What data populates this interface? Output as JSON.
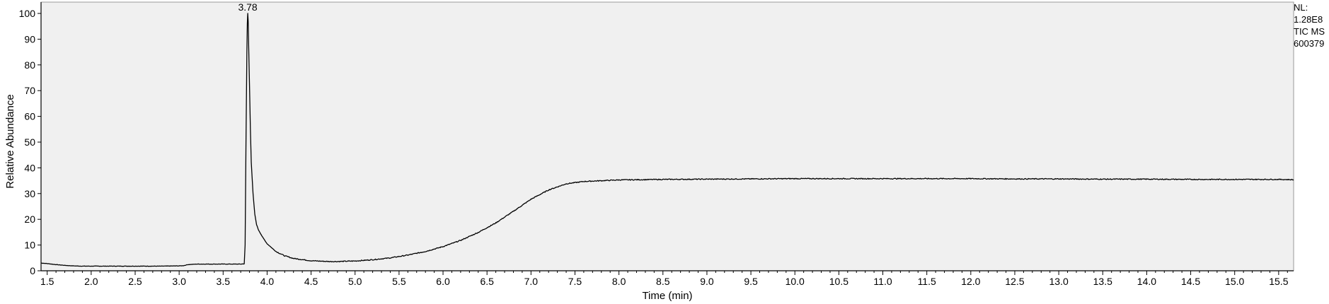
{
  "chart_data": {
    "type": "line",
    "title": "",
    "xlabel": "Time (min)",
    "ylabel": "Relative Abundance",
    "xlim": [
      1.43,
      15.67
    ],
    "ylim": [
      0,
      100
    ],
    "x_ticks": [
      1.5,
      2.0,
      2.5,
      3.0,
      3.5,
      4.0,
      4.5,
      5.0,
      5.5,
      6.0,
      6.5,
      7.0,
      7.5,
      8.0,
      8.5,
      9.0,
      9.5,
      10.0,
      10.5,
      11.0,
      11.5,
      12.0,
      12.5,
      13.0,
      13.5,
      14.0,
      14.5,
      15.0,
      15.5
    ],
    "x_tick_labels": [
      "1.5",
      "2.0",
      "2.5",
      "3.0",
      "3.5",
      "4.0",
      "4.5",
      "5.0",
      "5.5",
      "6.0",
      "6.5",
      "7.0",
      "7.5",
      "8.0",
      "8.5",
      "9.0",
      "9.5",
      "10.0",
      "10.5",
      "11.0",
      "11.5",
      "12.0",
      "12.5",
      "13.0",
      "13.5",
      "14.0",
      "14.5",
      "15.0",
      "15.5"
    ],
    "y_ticks": [
      0,
      10,
      20,
      30,
      40,
      50,
      60,
      70,
      80,
      90,
      100
    ],
    "y_tick_labels": [
      "0",
      "10",
      "20",
      "30",
      "40",
      "50",
      "60",
      "70",
      "80",
      "90",
      "100"
    ],
    "grid": false,
    "background_color": "#f0f0f0",
    "line_color": "#000000",
    "series": [
      {
        "x": [
          1.43,
          1.5,
          1.6,
          1.7,
          1.8,
          1.9,
          2.0,
          2.2,
          2.4,
          2.6,
          2.8,
          3.0,
          3.05,
          3.1,
          3.2,
          3.3,
          3.4,
          3.5,
          3.6,
          3.7,
          3.74,
          3.75,
          3.76,
          3.77,
          3.775,
          3.78,
          3.785,
          3.79,
          3.8,
          3.81,
          3.82,
          3.84,
          3.86,
          3.88,
          3.9,
          3.95,
          4.0,
          4.1,
          4.2,
          4.3,
          4.5,
          4.7,
          4.8,
          5.0,
          5.2,
          5.4,
          5.6,
          5.8,
          6.0,
          6.2,
          6.4,
          6.6,
          6.8,
          7.0,
          7.2,
          7.4,
          7.6,
          7.8,
          8.0,
          8.5,
          9.0,
          9.5,
          10.0,
          10.5,
          11.0,
          11.5,
          12.0,
          12.5,
          13.0,
          13.5,
          14.0,
          14.5,
          15.0,
          15.5,
          15.67
        ],
        "y": [
          3.0,
          2.8,
          2.4,
          2.1,
          1.9,
          1.8,
          1.8,
          1.8,
          1.8,
          1.8,
          1.8,
          1.9,
          2.0,
          2.4,
          2.6,
          2.6,
          2.6,
          2.6,
          2.6,
          2.6,
          2.7,
          10,
          50,
          85,
          96,
          100,
          97,
          88,
          72,
          55,
          42,
          30,
          22,
          18,
          16,
          13,
          10.5,
          7.5,
          5.8,
          4.8,
          3.9,
          3.6,
          3.6,
          3.8,
          4.3,
          5.0,
          6.1,
          7.5,
          9.4,
          11.8,
          14.9,
          18.6,
          23.1,
          27.8,
          31.4,
          33.8,
          34.7,
          35.0,
          35.3,
          35.5,
          35.6,
          35.7,
          35.8,
          35.8,
          35.8,
          35.8,
          35.8,
          35.7,
          35.7,
          35.6,
          35.6,
          35.5,
          35.5,
          35.5,
          35.4
        ]
      }
    ],
    "annotations": [
      {
        "x": 3.78,
        "y": 100,
        "text": "3.78"
      }
    ]
  },
  "info_box": {
    "line1": "NL:",
    "line2": "1.28E8",
    "line3": "TIC  MS",
    "line4": "600379"
  }
}
